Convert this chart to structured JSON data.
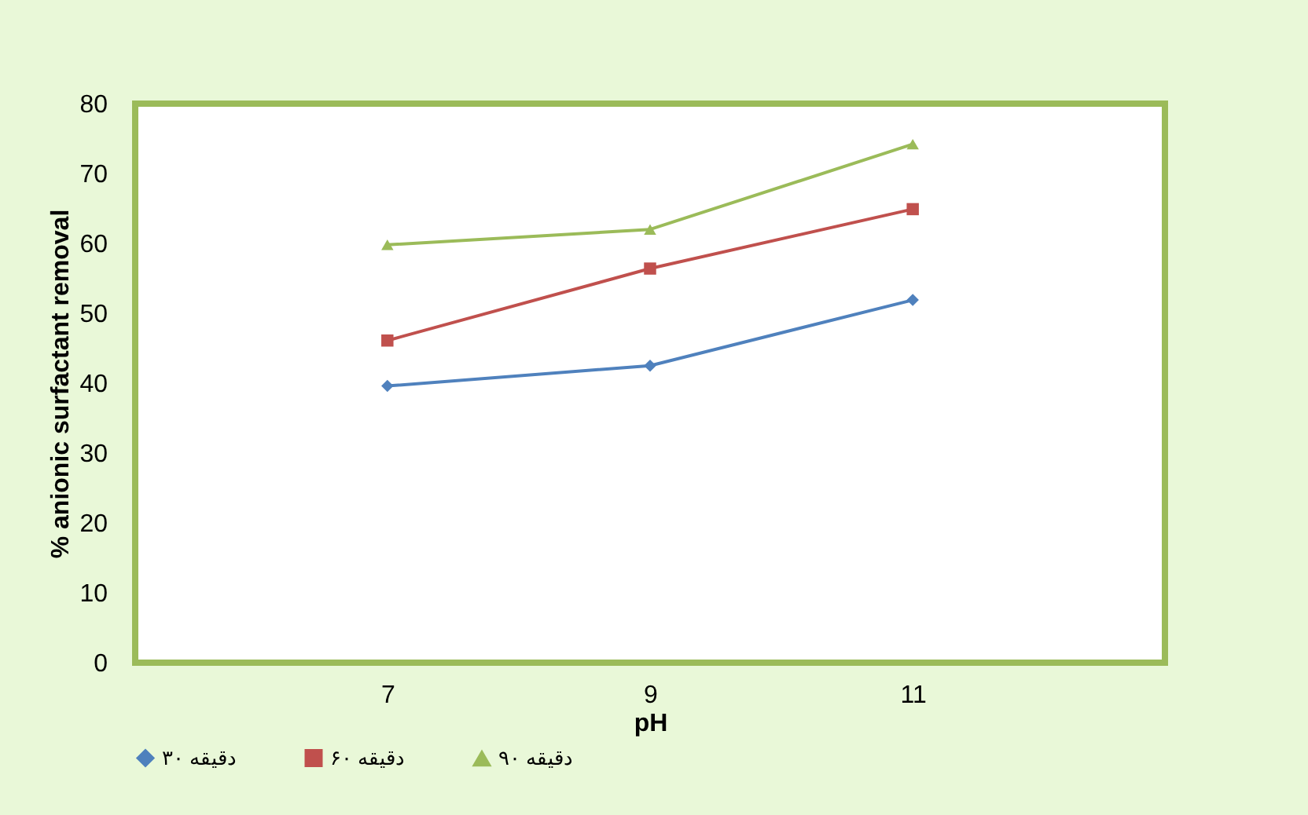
{
  "chart_data": {
    "type": "line",
    "xlabel": "pH",
    "ylabel": "% anionic surfactant removal",
    "categories": [
      "7",
      "9",
      "11"
    ],
    "series": [
      {
        "name": "۳۰ دقیقه",
        "color": "#4f81bd",
        "marker": "diamond",
        "values": [
          39.6,
          42.5,
          51.9
        ]
      },
      {
        "name": "۶۰ دقیقه",
        "color": "#c0504d",
        "marker": "square",
        "values": [
          46.1,
          56.4,
          64.9
        ]
      },
      {
        "name": "۹۰ دقیقه",
        "color": "#9bbb59",
        "marker": "triangle",
        "values": [
          59.8,
          62.0,
          74.2
        ]
      }
    ],
    "ylim": [
      0,
      80
    ],
    "yticks": [
      0,
      10,
      20,
      30,
      40,
      50,
      60,
      70,
      80
    ],
    "grid": false,
    "legend": "bottom"
  }
}
